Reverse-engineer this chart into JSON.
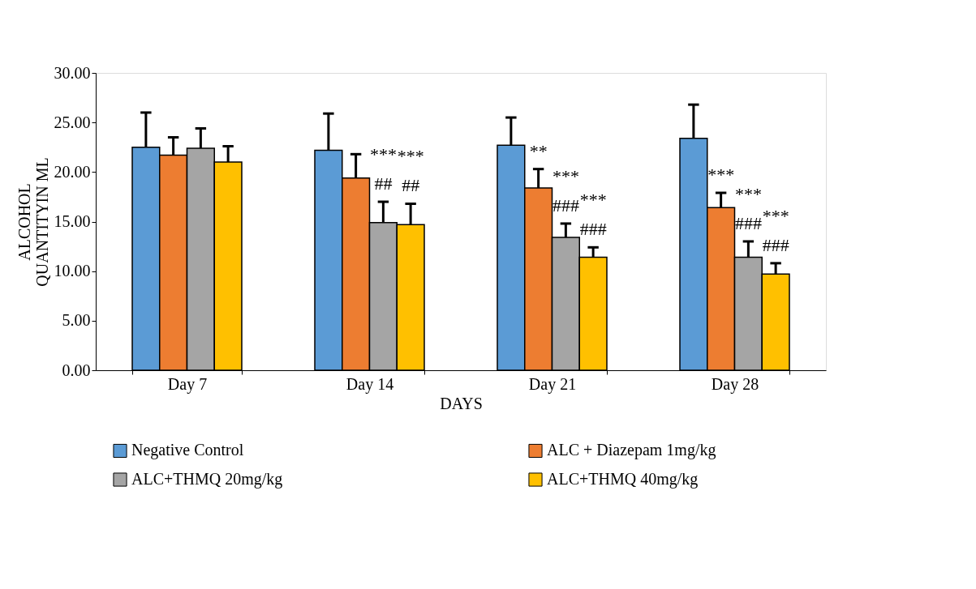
{
  "chart_data": {
    "type": "bar",
    "xlabel": "DAYS",
    "ylabel": "ALCOHOL\nQUANTITYIN ML",
    "categories": [
      "Day 7",
      "Day 14",
      "Day 21",
      "Day 28"
    ],
    "series": [
      {
        "name": "Negative Control",
        "color": "#5b9bd5",
        "values": [
          22.5,
          22.2,
          22.7,
          23.4
        ],
        "errors": [
          3.5,
          3.7,
          2.8,
          3.4
        ],
        "value_labels": [
          null,
          null,
          null,
          null
        ]
      },
      {
        "name": "ALC + Diazepam 1mg/kg",
        "color": "#ed7d31",
        "values": [
          21.7,
          19.4,
          18.4,
          16.4
        ],
        "errors": [
          1.8,
          2.4,
          1.9,
          1.5
        ],
        "value_labels": [
          null,
          null,
          "**",
          "***"
        ]
      },
      {
        "name": "ALC+THMQ 20mg/kg",
        "color": "#a5a5a5",
        "values": [
          22.4,
          14.9,
          13.4,
          11.4
        ],
        "errors": [
          2.0,
          2.1,
          1.4,
          1.6
        ],
        "value_labels": [
          null,
          "***\n##",
          "***\n###",
          "***\n###"
        ]
      },
      {
        "name": "ALC+THMQ 40mg/kg",
        "color": "#ffc000",
        "values": [
          21.0,
          14.7,
          11.4,
          9.7
        ],
        "errors": [
          1.6,
          2.1,
          1.0,
          1.1
        ],
        "value_labels": [
          null,
          "***\n##",
          "***\n###",
          "***\n###"
        ]
      }
    ],
    "ylim": [
      0,
      30
    ],
    "yticks": [
      {
        "value": 0,
        "label": "0.00"
      },
      {
        "value": 5,
        "label": "5.00"
      },
      {
        "value": 10,
        "label": "10.00"
      },
      {
        "value": 15,
        "label": "15.00"
      },
      {
        "value": 20,
        "label": "20.00"
      },
      {
        "value": 25,
        "label": "25.00"
      },
      {
        "value": 30,
        "label": "30.00"
      }
    ],
    "grid": false,
    "legend": "bottom"
  }
}
